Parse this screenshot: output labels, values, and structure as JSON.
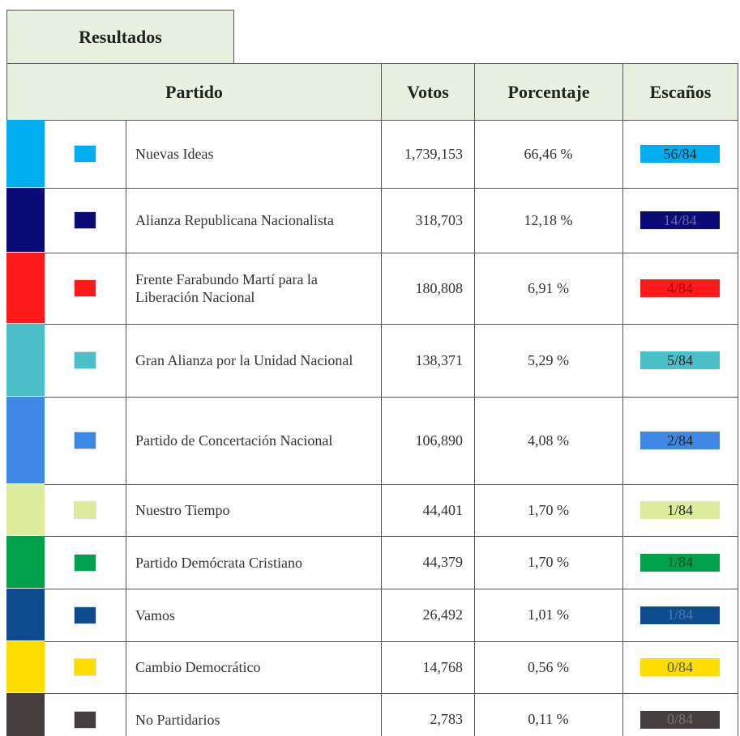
{
  "tab": "Resultados",
  "table": {
    "headers": [
      "Partido",
      "Votos",
      "Porcentaje",
      "Escaños"
    ],
    "rows": [
      {
        "color": "#00aeef",
        "name": "Nuevas Ideas",
        "votes": "1,739,153",
        "percent": "66,46 %",
        "seats": "56/84",
        "seat_text": "#222"
      },
      {
        "color": "#0b0b78",
        "name": "Alianza Republicana Nacionalista",
        "votes": "318,703",
        "percent": "12,18 %",
        "seats": "14/84",
        "seat_text": "#6a6aa8"
      },
      {
        "color": "#ff1a1a",
        "name": "Frente Farabundo Martí para la Liberación Nacional",
        "votes": "180,808",
        "percent": "6,91 %",
        "seats": "4/84",
        "seat_text": "#a80000"
      },
      {
        "color": "#4cc0c8",
        "name": "Gran Alianza por la Unidad Nacional",
        "votes": "138,371",
        "percent": "5,29 %",
        "seats": "5/84",
        "seat_text": "#222"
      },
      {
        "color": "#3f88e3",
        "name": "Partido de Concertación Nacional",
        "votes": "106,890",
        "percent": "4,08 %",
        "seats": "2/84",
        "seat_text": "#222"
      },
      {
        "color": "#dcec9c",
        "name": "Nuestro Tiempo",
        "votes": "44,401",
        "percent": "1,70 %",
        "seats": "1/84",
        "seat_text": "#222"
      },
      {
        "color": "#00a04c",
        "name": "Partido Demócrata Cristiano",
        "votes": "44,379",
        "percent": "1,70 %",
        "seats": "1/84",
        "seat_text": "#0a4a20"
      },
      {
        "color": "#0e4b8e",
        "name": "Vamos",
        "votes": "26,492",
        "percent": "1,01 %",
        "seats": "1/84",
        "seat_text": "#4a78b0"
      },
      {
        "color": "#ffdd00",
        "name": "Cambio Democrático",
        "votes": "14,768",
        "percent": "0,56 %",
        "seats": "0/84",
        "seat_text": "#555"
      },
      {
        "color": "#463e3e",
        "name": "No Partidarios",
        "votes": "2,783",
        "percent": "0,11 %",
        "seats": "0/84",
        "seat_text": "#7a7373"
      }
    ]
  }
}
